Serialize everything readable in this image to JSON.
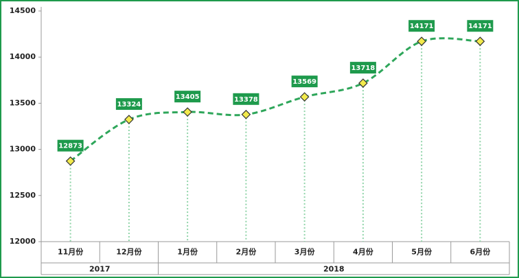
{
  "chart_data": {
    "type": "line",
    "categories": [
      "11月份",
      "12月份",
      "1月份",
      "2月份",
      "3月份",
      "4月份",
      "5月份",
      "6月份"
    ],
    "x_groups": [
      {
        "label": "2017",
        "count": 2
      },
      {
        "label": "2018",
        "count": 6
      }
    ],
    "values": [
      12873,
      13324,
      13405,
      13378,
      13569,
      13718,
      14171,
      14171
    ],
    "color": "#2ea65a",
    "marker_color": "#f2ea4c",
    "label_color": "#1e9a4c",
    "ylim": [
      12000,
      14500
    ],
    "yticks": [
      12000,
      12500,
      13000,
      13500,
      14000,
      14500
    ]
  }
}
